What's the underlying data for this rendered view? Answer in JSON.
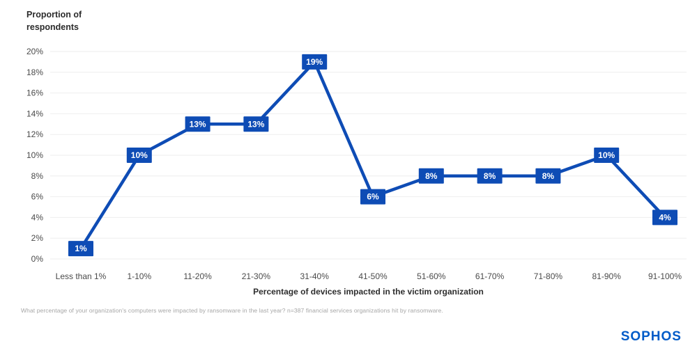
{
  "chart": {
    "y_axis_title": "Proportion of\nrespondents",
    "footnote": "What percentage of your organization's computers were impacted by ransomware in the last year? n=387 financial services organizations hit by ransomware."
  },
  "brand": {
    "logo_text": "SOPHOS",
    "logo_color": "#005BC8"
  },
  "chart_data": {
    "type": "line",
    "title": "Proportion of respondents",
    "ylabel": "Proportion of respondents",
    "xlabel": "Percentage of devices impacted in the victim organization",
    "categories": [
      "Less than 1%",
      "1-10%",
      "11-20%",
      "21-30%",
      "31-40%",
      "41-50%",
      "51-60%",
      "61-70%",
      "71-80%",
      "81-90%",
      "91-100%"
    ],
    "values": [
      1,
      10,
      13,
      13,
      19,
      6,
      8,
      8,
      8,
      10,
      4
    ],
    "point_labels": [
      "1%",
      "10%",
      "13%",
      "13%",
      "19%",
      "6%",
      "8%",
      "8%",
      "8%",
      "10%",
      "4%"
    ],
    "ylim": [
      0,
      20
    ],
    "ytick_step": 2,
    "ytick_labels": [
      "0%",
      "2%",
      "4%",
      "6%",
      "8%",
      "10%",
      "12%",
      "14%",
      "16%",
      "18%",
      "20%"
    ],
    "grid": "horizontal",
    "legend": "none",
    "line_color": "#0E4CB5",
    "marker_label_text_color": "#FFFFFF",
    "gridline_color": "#EEEEEE",
    "axis_text_color": "#4A4A4A"
  }
}
